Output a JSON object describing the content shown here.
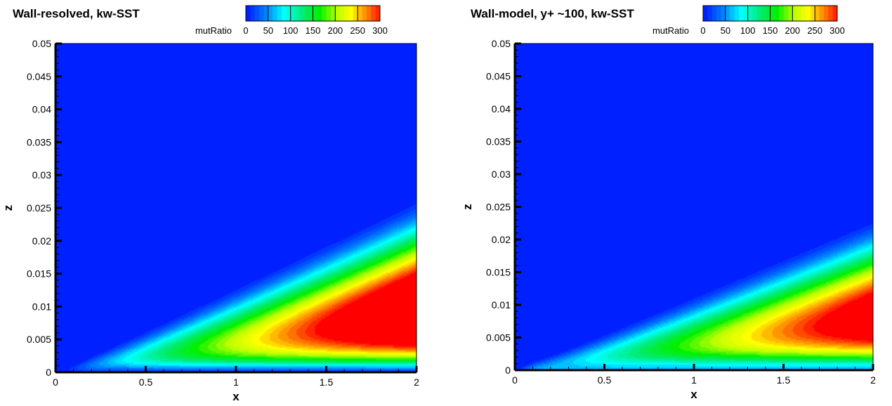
{
  "chart_data": [
    {
      "type": "heatmap",
      "title": "Wall-resolved, kw-SST",
      "xlabel": "x",
      "ylabel": "z",
      "xlim": [
        0,
        2
      ],
      "ylim": [
        0,
        0.05
      ],
      "xticks": [
        "0",
        "0.5",
        "1",
        "1.5",
        "2"
      ],
      "yticks": [
        "0",
        "0.005",
        "0.01",
        "0.015",
        "0.02",
        "0.025",
        "0.03",
        "0.035",
        "0.04",
        "0.045",
        "0.05"
      ],
      "colorbar": {
        "label": "mutRatio",
        "range": [
          0,
          300
        ],
        "ticks": [
          "0",
          "50",
          "100",
          "150",
          "200",
          "250",
          "300"
        ]
      },
      "field": {
        "description_values": "peak mutRatio >300 near x=2, z~0.008; boundary-layer edge z~0.027 at x=2",
        "edge_slope": 0.0136,
        "peak_scale": 200,
        "wall_floor": 0
      }
    },
    {
      "type": "heatmap",
      "title": "Wall-model, y+ ~100, kw-SST",
      "xlabel": "x",
      "ylabel": "z",
      "xlim": [
        0,
        2
      ],
      "ylim": [
        0,
        0.05
      ],
      "xticks": [
        "0",
        "0.5",
        "1",
        "1.5",
        "2"
      ],
      "yticks": [
        "0",
        "0.005",
        "0.01",
        "0.015",
        "0.02",
        "0.025",
        "0.03",
        "0.035",
        "0.04",
        "0.045",
        "0.05"
      ],
      "colorbar": {
        "label": "mutRatio",
        "range": [
          0,
          300
        ],
        "ticks": [
          "0",
          "50",
          "100",
          "150",
          "200",
          "250",
          "300"
        ]
      },
      "field": {
        "description_values": "peak mutRatio ~300 near x=2, z~0.009; boundary-layer edge z~0.024 at x=2",
        "edge_slope": 0.012,
        "peak_scale": 172,
        "wall_floor": 60
      }
    }
  ]
}
